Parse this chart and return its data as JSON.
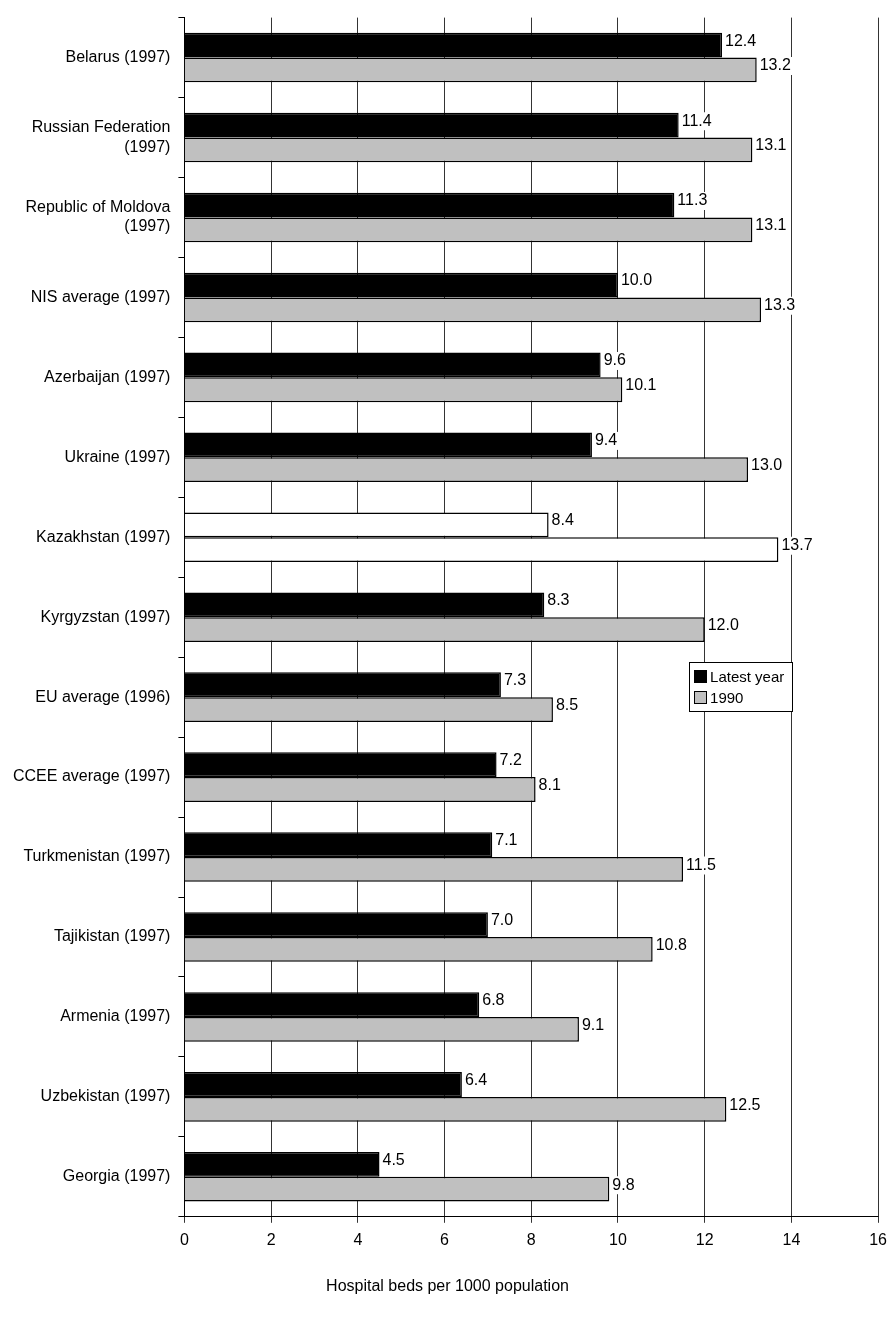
{
  "chart_data": {
    "type": "bar",
    "orientation": "horizontal",
    "xlabel": "Hospital beds per 1000 population",
    "categories": [
      "Belarus (1997)",
      "Russian Federation (1997)",
      "Republic of Moldova (1997)",
      "NIS average (1997)",
      "Azerbaijan (1997)",
      "Ukraine (1997)",
      "Kazakhstan (1997)",
      "Kyrgyzstan (1997)",
      "EU average (1996)",
      "CCEE average (1997)",
      "Turkmenistan (1997)",
      "Tajikistan (1997)",
      "Armenia (1997)",
      "Uzbekistan (1997)",
      "Georgia (1997)"
    ],
    "series": [
      {
        "name": "Latest year",
        "color": "#000000",
        "colors": [
          "#000000",
          "#000000",
          "#000000",
          "#000000",
          "#000000",
          "#000000",
          "#ffffff",
          "#000000",
          "#000000",
          "#000000",
          "#000000",
          "#000000",
          "#000000",
          "#000000",
          "#000000"
        ],
        "values": [
          12.4,
          11.4,
          11.3,
          10.0,
          9.6,
          9.4,
          8.4,
          8.3,
          7.3,
          7.2,
          7.1,
          7.0,
          6.8,
          6.4,
          4.5
        ],
        "value_labels": [
          "12.4",
          "11.4",
          "11.3",
          "10.0",
          "9.6",
          "9.4",
          "8.4",
          "8.3",
          "7.3",
          "7.2",
          "7.1",
          "7.0",
          "6.8",
          "6.4",
          "4.5"
        ]
      },
      {
        "name": "1990",
        "color": "#c0c0c0",
        "colors": [
          "#c0c0c0",
          "#c0c0c0",
          "#c0c0c0",
          "#c0c0c0",
          "#c0c0c0",
          "#c0c0c0",
          "#ffffff",
          "#c0c0c0",
          "#c0c0c0",
          "#c0c0c0",
          "#c0c0c0",
          "#c0c0c0",
          "#c0c0c0",
          "#c0c0c0",
          "#c0c0c0"
        ],
        "values": [
          13.2,
          13.1,
          13.1,
          13.3,
          10.1,
          13.0,
          13.7,
          12.0,
          8.5,
          8.1,
          11.5,
          10.8,
          9.1,
          12.5,
          9.8
        ],
        "value_labels": [
          "13.2",
          "13.1",
          "13.1",
          "13.3",
          "10.1",
          "13.0",
          "13.7",
          "12.0",
          "8.5",
          "8.1",
          "11.5",
          "10.8",
          "9.1",
          "12.5",
          "9.8"
        ]
      }
    ],
    "xlim": [
      0,
      16
    ],
    "xticks": [
      0,
      2,
      4,
      6,
      8,
      10,
      12,
      14,
      16
    ],
    "grid": "x",
    "legend": "right"
  }
}
